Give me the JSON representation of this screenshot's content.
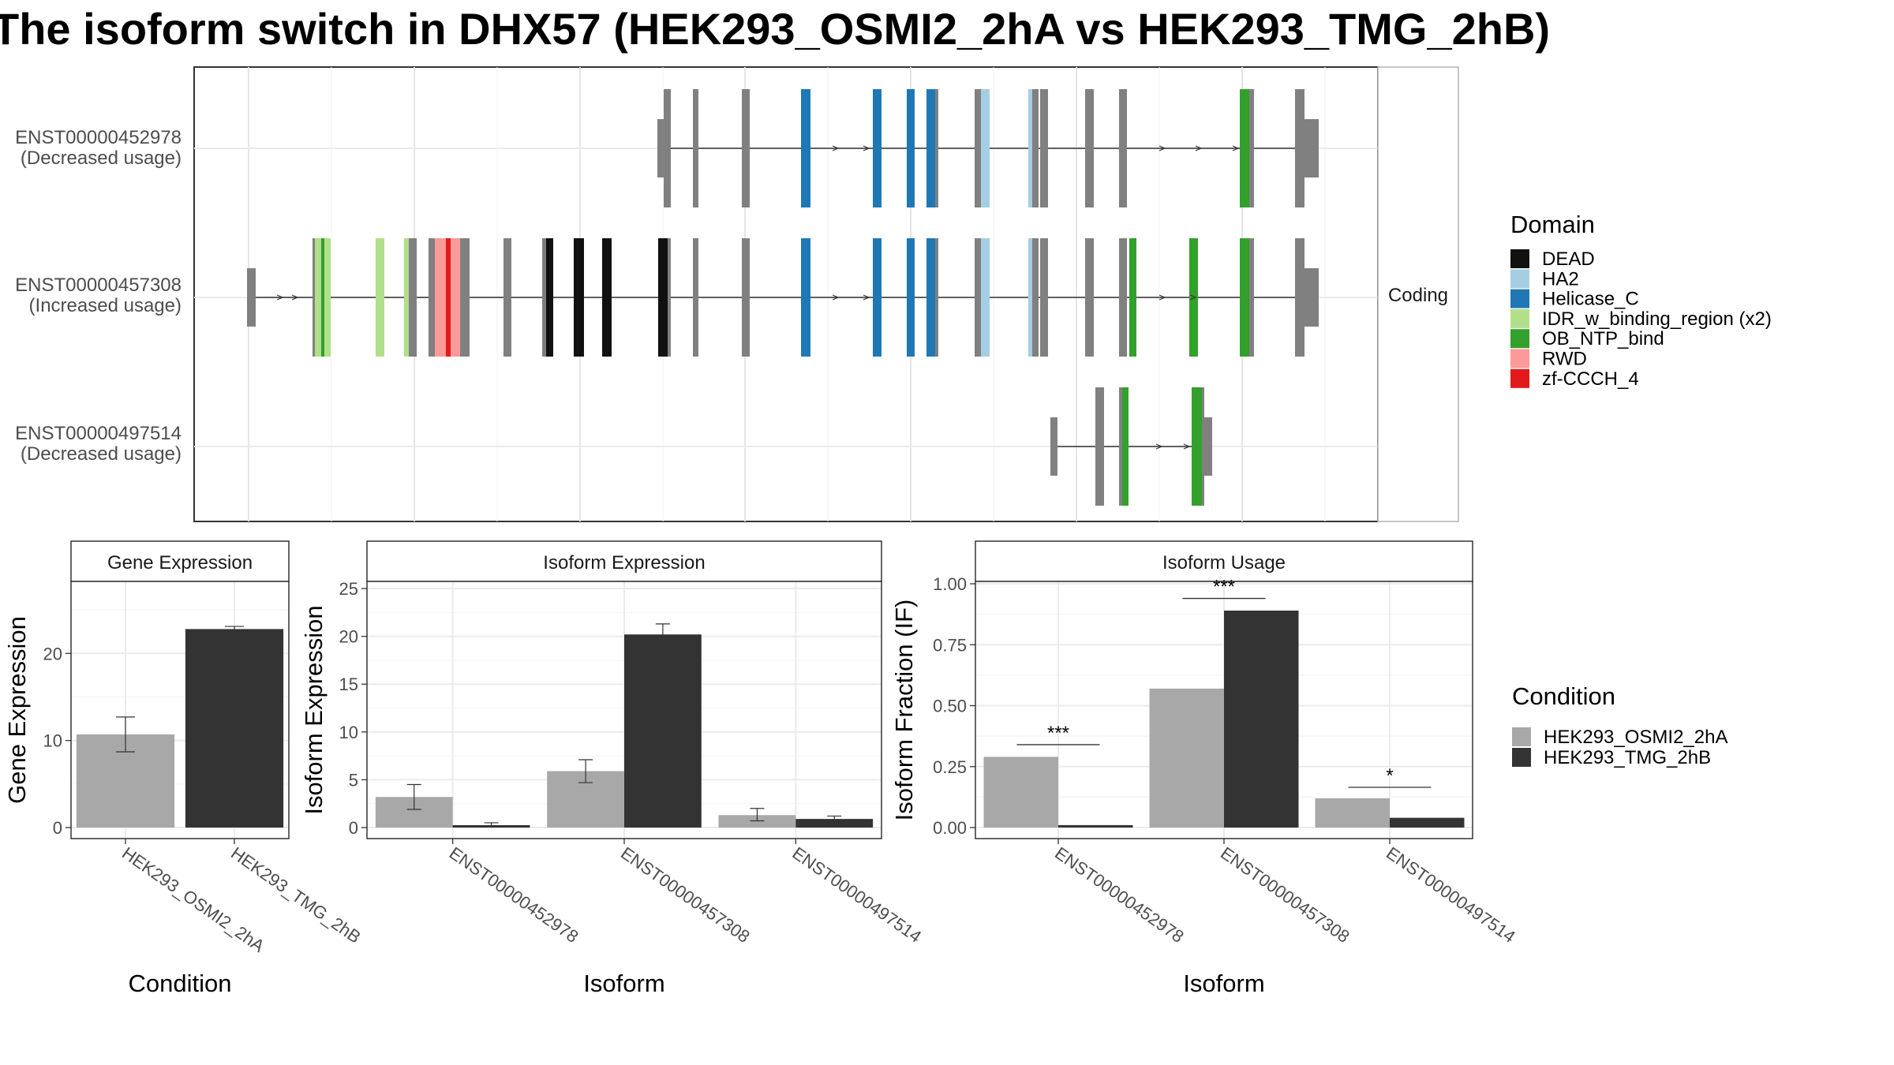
{
  "title": "The isoform switch in DHX57 (HEK293_OSMI2_2hA vs HEK293_TMG_2hB)",
  "structure_panel": {
    "strip_label": "Coding",
    "isoforms": [
      {
        "id": "ENST00000452978",
        "status": "(Decreased usage)"
      },
      {
        "id": "ENST00000457308",
        "status": "(Increased usage)"
      },
      {
        "id": "ENST00000497514",
        "status": "(Decreased usage)"
      }
    ]
  },
  "domain_legend": {
    "title": "Domain",
    "items": [
      {
        "label": "DEAD",
        "color": "#111111"
      },
      {
        "label": "HA2",
        "color": "#a6cee3"
      },
      {
        "label": "Helicase_C",
        "color": "#1f78b4"
      },
      {
        "label": "IDR_w_binding_region (x2)",
        "color": "#b2df8a"
      },
      {
        "label": "OB_NTP_bind",
        "color": "#33a02c"
      },
      {
        "label": "RWD",
        "color": "#fb9a99"
      },
      {
        "label": "zf-CCCH_4",
        "color": "#e31a1c"
      }
    ]
  },
  "condition_legend": {
    "title": "Condition",
    "items": [
      {
        "label": "HEK293_OSMI2_2hA",
        "color": "#a8a8a8"
      },
      {
        "label": "HEK293_TMG_2hB",
        "color": "#333333"
      }
    ]
  },
  "chart_data": [
    {
      "type": "bar",
      "title": "Gene Expression",
      "xlabel": "Condition",
      "ylabel": "Gene Expression",
      "categories": [
        "HEK293_OSMI2_2hA",
        "HEK293_TMG_2hB"
      ],
      "values": [
        10.7,
        22.8
      ],
      "errors": [
        [
          8.7,
          12.7
        ],
        [
          22.5,
          23.1
        ]
      ],
      "colors": [
        "#a8a8a8",
        "#333333"
      ],
      "ylim": [
        0,
        28
      ],
      "yticks": [
        0,
        10,
        20
      ],
      "grid": true
    },
    {
      "type": "bar",
      "title": "Isoform Expression",
      "xlabel": "Isoform",
      "ylabel": "Isoform Expression",
      "categories": [
        "ENST00000452978",
        "ENST00000457308",
        "ENST00000497514"
      ],
      "series": [
        {
          "name": "HEK293_OSMI2_2hA",
          "values": [
            3.2,
            5.9,
            1.3
          ],
          "errors": [
            [
              1.9,
              4.5
            ],
            [
              4.7,
              7.1
            ],
            [
              0.7,
              2.0
            ]
          ]
        },
        {
          "name": "HEK293_TMG_2hB",
          "values": [
            0.25,
            20.2,
            0.9
          ],
          "errors": [
            [
              0.1,
              0.5
            ],
            [
              19.2,
              21.3
            ],
            [
              0.6,
              1.2
            ]
          ]
        }
      ],
      "ylim": [
        0,
        25.5
      ],
      "yticks": [
        0,
        5,
        10,
        15,
        20,
        25
      ],
      "grid": true
    },
    {
      "type": "bar",
      "title": "Isoform Usage",
      "xlabel": "Isoform",
      "ylabel": "Isoform Fraction (IF)",
      "categories": [
        "ENST00000452978",
        "ENST00000457308",
        "ENST00000497514"
      ],
      "series": [
        {
          "name": "HEK293_OSMI2_2hA",
          "values": [
            0.29,
            0.57,
            0.12
          ]
        },
        {
          "name": "HEK293_TMG_2hB",
          "values": [
            0.01,
            0.89,
            0.04
          ]
        }
      ],
      "significance": [
        {
          "category": "ENST00000452978",
          "label": "***",
          "y": 0.34
        },
        {
          "category": "ENST00000457308",
          "label": "***",
          "y": 0.94
        },
        {
          "category": "ENST00000497514",
          "label": "*",
          "y": 0.165
        }
      ],
      "ylim": [
        0,
        1.0
      ],
      "yticks": [
        "0.00",
        "0.25",
        "0.50",
        "0.75",
        "1.00"
      ],
      "grid": true
    }
  ]
}
